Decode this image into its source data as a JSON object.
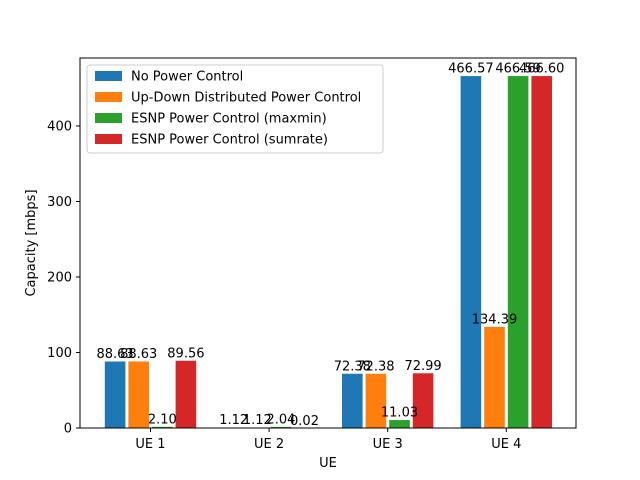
{
  "chart_data": {
    "type": "bar",
    "title": "",
    "xlabel": "UE",
    "ylabel": "Capacity [mbps]",
    "categories": [
      "UE 1",
      "UE 2",
      "UE 3",
      "UE 4"
    ],
    "ylim": [
      0,
      490
    ],
    "yticks": [
      0,
      100,
      200,
      300,
      400
    ],
    "legend_position": "top-left",
    "grid": false,
    "series": [
      {
        "name": "No Power Control",
        "color": "#1f77b4",
        "values": [
          88.63,
          1.12,
          72.38,
          466.57
        ],
        "labels": [
          "88.63",
          "1.12",
          "72.38",
          "466.57"
        ]
      },
      {
        "name": "Up-Down Distributed Power Control",
        "color": "#ff7f0e",
        "values": [
          88.63,
          1.12,
          72.38,
          134.39
        ],
        "labels": [
          "88.63",
          "1.12",
          "72.38",
          "134.39"
        ]
      },
      {
        "name": "ESNP Power Control (maxmin)",
        "color": "#2ca02c",
        "values": [
          2.1,
          2.04,
          11.03,
          466.59
        ],
        "labels": [
          "2.10",
          "2.04",
          "11.03",
          "466.59"
        ]
      },
      {
        "name": "ESNP Power Control (sumrate)",
        "color": "#d62728",
        "values": [
          89.56,
          0.02,
          72.99,
          466.6
        ],
        "labels": [
          "89.56",
          "0.02",
          "72.99",
          "466.60"
        ]
      }
    ]
  }
}
